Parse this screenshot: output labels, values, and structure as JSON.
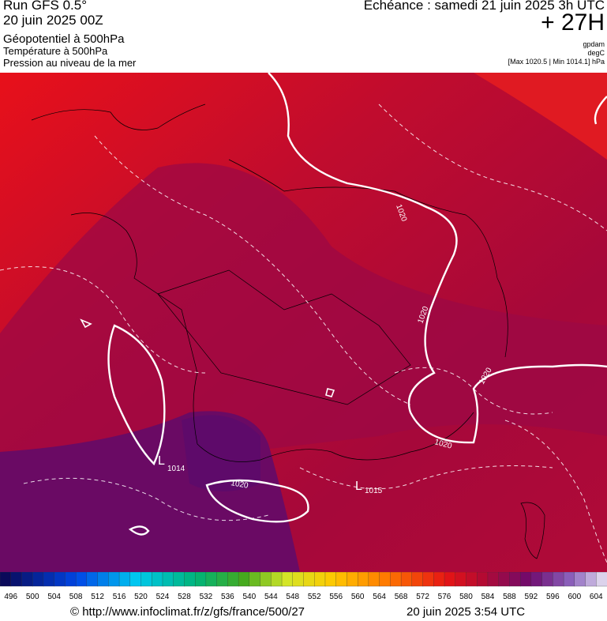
{
  "header": {
    "left": [
      "Run GFS 0.5°",
      "20 juin 2025 00Z",
      "Géopotentiel à 500hPa",
      "Température à 500hPa",
      "Pression au niveau de la mer"
    ],
    "right": {
      "valid": "Echéance : samedi 21 juin 2025 3h UTC",
      "lead": "+ 27H",
      "units": [
        "gpdam",
        "degC",
        "[Max 1020.5 | Min 1014.1] hPa"
      ]
    }
  },
  "map": {
    "labels": [
      "1020",
      "1020",
      "1020",
      "1020",
      "1020",
      "L",
      "1014",
      "L",
      "1015"
    ]
  },
  "colorbar": {
    "labels": [
      496,
      500,
      504,
      508,
      512,
      516,
      520,
      524,
      528,
      532,
      536,
      540,
      544,
      548,
      552,
      556,
      560,
      564,
      568,
      572,
      576,
      580,
      584,
      588,
      592,
      596,
      600,
      604
    ]
  },
  "footer": {
    "source": "© http://www.infoclimat.fr/z/gfs/france/500/27",
    "created": "20 juin 2025  3:54 UTC"
  }
}
